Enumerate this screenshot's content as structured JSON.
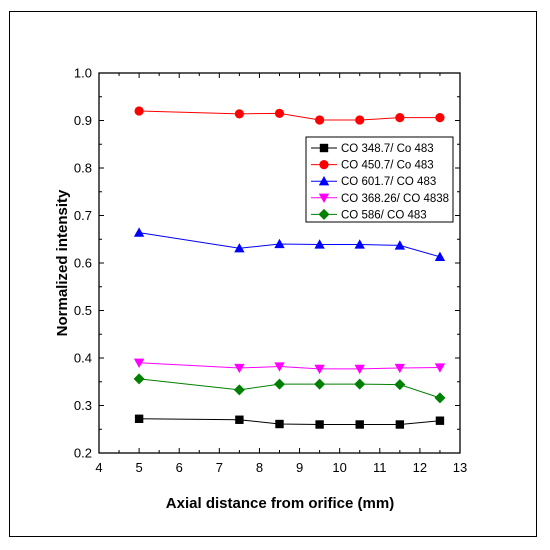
{
  "chart_data": {
    "type": "line",
    "title": "",
    "xlabel": "Axial distance from orifice (mm)",
    "ylabel": "Normalized intensity",
    "xlim": [
      4,
      13
    ],
    "ylim": [
      0.2,
      1.0
    ],
    "xticks": [
      4,
      5,
      6,
      7,
      8,
      9,
      10,
      11,
      12,
      13
    ],
    "xtick_labels": [
      "4",
      "5",
      "6",
      "7",
      "8",
      "9",
      "10",
      "11",
      "12",
      "13"
    ],
    "yticks": [
      0.2,
      0.3,
      0.4,
      0.5,
      0.6,
      0.7,
      0.8,
      0.9,
      1.0
    ],
    "ytick_labels": [
      "0.2",
      "0.3",
      "0.4",
      "0.5",
      "0.6",
      "0.7",
      "0.8",
      "0.9",
      "1.0"
    ],
    "grid": false,
    "legend_position": "right",
    "x": [
      5,
      7.5,
      8.5,
      9.5,
      10.5,
      11.5,
      12.5
    ],
    "series": [
      {
        "name": "CO 348.7/ Co 483",
        "color": "#000000",
        "marker": "square",
        "values": [
          0.272,
          0.27,
          0.261,
          0.26,
          0.26,
          0.26,
          0.268
        ]
      },
      {
        "name": "CO 450.7/ Co 483",
        "color": "#ff0000",
        "marker": "circle",
        "values": [
          0.92,
          0.914,
          0.915,
          0.901,
          0.901,
          0.906,
          0.906
        ]
      },
      {
        "name": "CO 601.7/ CO 483",
        "color": "#0000ff",
        "marker": "triangle-up",
        "values": [
          0.664,
          0.631,
          0.64,
          0.639,
          0.639,
          0.637,
          0.613
        ]
      },
      {
        "name": "CO 368.26/ CO 4838",
        "color": "#ff00ff",
        "marker": "triangle-down",
        "values": [
          0.39,
          0.379,
          0.382,
          0.377,
          0.377,
          0.379,
          0.38
        ]
      },
      {
        "name": "CO 586/ CO 483",
        "color": "#008000",
        "marker": "diamond",
        "values": [
          0.356,
          0.333,
          0.345,
          0.345,
          0.345,
          0.344,
          0.316
        ]
      }
    ]
  }
}
